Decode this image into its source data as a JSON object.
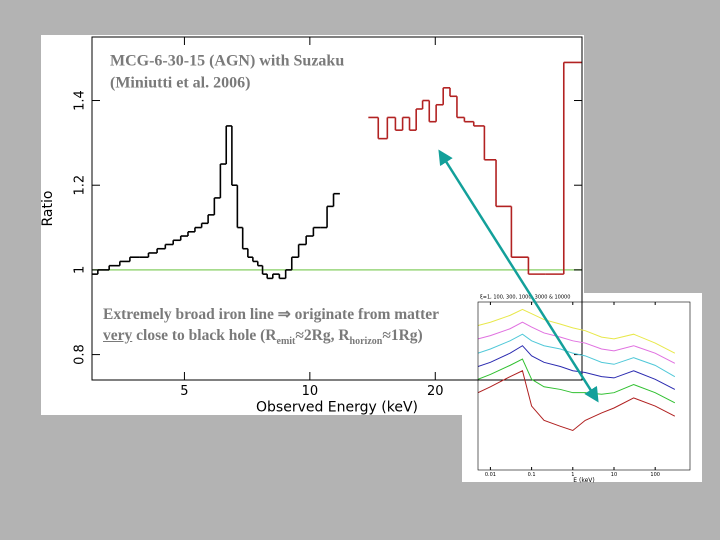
{
  "chart_data": [
    {
      "type": "step",
      "title": "MCG-6-30-15 (AGN) with Suzaku",
      "subtitle": "(Miniutti et al. 2006)",
      "x_label": "Observed Energy (keV)",
      "y_label": "Ratio",
      "xscale": "log",
      "xlim": [
        3,
        45
      ],
      "ylim": [
        0.74,
        1.55
      ],
      "xticks": [
        5,
        10,
        20
      ],
      "yticks": [
        0.8,
        1,
        1.2,
        1.4
      ],
      "reference_line": {
        "value": 1,
        "color": "#9ad67c"
      },
      "series": [
        {
          "color": "#000000",
          "x": [
            3.0,
            3.2,
            3.4,
            3.6,
            3.8,
            4.0,
            4.2,
            4.4,
            4.6,
            4.8,
            5.0,
            5.2,
            5.4,
            5.6,
            5.8,
            6.0,
            6.2,
            6.4,
            6.6,
            6.8,
            7.0,
            7.2,
            7.4,
            7.6,
            7.8,
            8.0,
            8.3,
            8.6,
            8.9,
            9.2,
            9.6,
            10.0,
            10.4,
            10.8,
            11.2,
            11.6
          ],
          "values": [
            0.99,
            1.0,
            1.01,
            1.02,
            1.03,
            1.03,
            1.04,
            1.05,
            1.06,
            1.07,
            1.08,
            1.09,
            1.1,
            1.11,
            1.13,
            1.17,
            1.25,
            1.34,
            1.2,
            1.1,
            1.05,
            1.03,
            1.02,
            1.01,
            0.99,
            0.98,
            0.99,
            0.98,
            1.0,
            1.03,
            1.06,
            1.08,
            1.1,
            1.1,
            1.15,
            1.18
          ]
        },
        {
          "color": "#b22222",
          "x": [
            14.2,
            15.0,
            15.7,
            16.4,
            17.0,
            17.7,
            18.3,
            19.0,
            19.7,
            20.5,
            21.3,
            22.1,
            23.0,
            24.0,
            25.5,
            27.0,
            29.0,
            32.0,
            35.0,
            38.5,
            43.0
          ],
          "values": [
            1.36,
            1.31,
            1.36,
            1.33,
            1.36,
            1.33,
            1.38,
            1.4,
            1.35,
            1.39,
            1.43,
            1.41,
            1.36,
            1.35,
            1.34,
            1.26,
            1.15,
            1.03,
            0.99,
            0.99,
            1.49
          ]
        }
      ]
    },
    {
      "type": "line",
      "subtitle": "ξ=1, 100, 300, 1000, 3000 & 10000",
      "x_label": "E (keV)",
      "xscale": "log",
      "yscale": "log",
      "xlim": [
        0.005,
        700
      ],
      "ylim": [
        0.001,
        100
      ],
      "xticks": [
        0.01,
        0.1,
        1,
        10,
        100
      ],
      "series": [
        {
          "color": "#e8e84a",
          "x": [
            0.005,
            0.01,
            0.03,
            0.06,
            0.1,
            0.2,
            0.5,
            1,
            2,
            5,
            10,
            30,
            100,
            300
          ],
          "values": [
            20,
            25,
            40,
            60,
            45,
            30,
            22,
            17,
            14,
            9,
            8,
            11,
            6,
            3
          ]
        },
        {
          "color": "#e070e0",
          "x": [
            0.005,
            0.01,
            0.03,
            0.06,
            0.1,
            0.2,
            0.5,
            1,
            2,
            5,
            10,
            30,
            100,
            300
          ],
          "values": [
            8,
            10,
            16,
            25,
            18,
            12,
            9,
            7,
            6,
            4,
            3.5,
            5,
            3,
            1.5
          ]
        },
        {
          "color": "#50c8d8",
          "x": [
            0.005,
            0.01,
            0.03,
            0.06,
            0.1,
            0.2,
            0.5,
            1,
            2,
            5,
            10,
            30,
            100,
            300
          ],
          "values": [
            3,
            4,
            7,
            11,
            7,
            5,
            4,
            3,
            2.5,
            1.6,
            1.4,
            2.2,
            1.3,
            0.6
          ]
        },
        {
          "color": "#2a2ab0",
          "x": [
            0.005,
            0.01,
            0.03,
            0.06,
            0.1,
            0.2,
            0.5,
            1,
            2,
            5,
            10,
            30,
            100,
            300
          ],
          "values": [
            1.2,
            1.6,
            3,
            5,
            2.5,
            1.6,
            1.2,
            0.9,
            0.8,
            0.6,
            0.55,
            0.9,
            0.5,
            0.25
          ]
        },
        {
          "color": "#30c030",
          "x": [
            0.005,
            0.01,
            0.03,
            0.06,
            0.1,
            0.2,
            0.5,
            1,
            2,
            5,
            10,
            30,
            100,
            300
          ],
          "values": [
            0.5,
            0.7,
            1.3,
            2,
            0.5,
            0.3,
            0.25,
            0.2,
            0.2,
            0.18,
            0.2,
            0.35,
            0.2,
            0.1
          ]
        },
        {
          "color": "#b02020",
          "x": [
            0.005,
            0.01,
            0.03,
            0.06,
            0.1,
            0.2,
            0.5,
            1,
            2,
            5,
            10,
            30,
            100,
            300
          ],
          "values": [
            0.2,
            0.3,
            0.6,
            0.9,
            0.08,
            0.03,
            0.02,
            0.015,
            0.03,
            0.05,
            0.07,
            0.14,
            0.08,
            0.04
          ]
        }
      ]
    }
  ],
  "annotation": {
    "parts": [
      "Extremely broad iron line ⇒ originate from matter ",
      "very",
      " close to black hole (R",
      "emit",
      "≈2Rg, R",
      "horizon",
      "≈1Rg)"
    ]
  }
}
